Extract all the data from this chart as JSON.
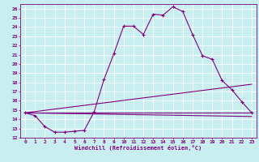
{
  "xlabel": "Windchill (Refroidissement éolien,°C)",
  "bg_color": "#c8eef0",
  "line_color": "#800080",
  "grid_color": "#ffffff",
  "xlim": [
    -0.5,
    23.5
  ],
  "ylim": [
    12,
    26.5
  ],
  "yticks": [
    12,
    13,
    14,
    15,
    16,
    17,
    18,
    19,
    20,
    21,
    22,
    23,
    24,
    25,
    26
  ],
  "xticks": [
    0,
    1,
    2,
    3,
    4,
    5,
    6,
    7,
    8,
    9,
    10,
    11,
    12,
    13,
    14,
    15,
    16,
    17,
    18,
    19,
    20,
    21,
    22,
    23
  ],
  "line1_x": [
    0,
    1,
    2,
    3,
    4,
    5,
    6,
    7,
    8,
    9,
    10,
    11,
    12,
    13,
    14,
    15,
    16,
    17,
    18,
    19,
    20,
    21,
    22,
    23
  ],
  "line1_y": [
    14.7,
    14.4,
    13.2,
    12.6,
    12.6,
    12.7,
    12.8,
    14.8,
    18.3,
    21.1,
    24.1,
    24.1,
    23.2,
    25.4,
    25.3,
    26.2,
    25.7,
    23.2,
    20.9,
    20.5,
    18.2,
    17.2,
    15.9,
    14.7
  ],
  "line2_x": [
    0,
    23
  ],
  "line2_y": [
    14.7,
    14.7
  ],
  "line3_x": [
    0,
    23
  ],
  "line3_y": [
    14.7,
    17.8
  ],
  "line4_x": [
    0,
    23
  ],
  "line4_y": [
    14.7,
    14.3
  ]
}
